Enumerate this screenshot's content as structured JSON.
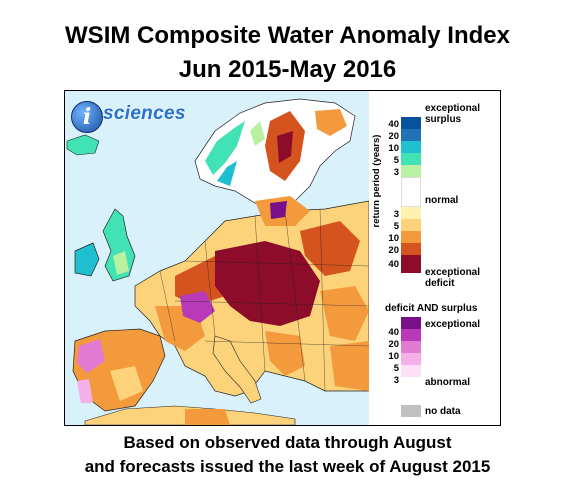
{
  "title_line1": "WSIM Composite Water Anomaly Index",
  "title_line2": "Jun 2015-May 2016",
  "logo": {
    "mark": "i",
    "text": "sciences"
  },
  "legend": {
    "axis_label": "return period (years)",
    "surplus_label": "exceptional surplus",
    "surplus_label_line1": "exceptional",
    "surplus_label_line2": "surplus",
    "normal_label": "normal",
    "deficit_label_line1": "exceptional",
    "deficit_label_line2": "deficit",
    "surplus_ticks": [
      "40",
      "20",
      "10",
      "5",
      "3"
    ],
    "deficit_ticks": [
      "3",
      "5",
      "10",
      "20",
      "40"
    ],
    "both_title": "deficit AND surplus",
    "both_top": "exceptional",
    "both_bottom": "abnormal",
    "both_ticks": [
      "40",
      "20",
      "10",
      "5",
      "3"
    ],
    "nodata_label": "no data",
    "colors": {
      "surplus": [
        "#08519c",
        "#2171b5",
        "#1fbfd0",
        "#41e2b4",
        "#b9f0a2"
      ],
      "normal": "#ffffff",
      "deficit": [
        "#fff2b0",
        "#fcd27a",
        "#f39a3c",
        "#d4531e",
        "#8c0c2a"
      ],
      "both": [
        "#7a0f8a",
        "#b83ab8",
        "#e27ad4",
        "#f5b0ea",
        "#fde0f8"
      ],
      "nodata": "#c0c0c0",
      "ocean": "#d9f1fb"
    }
  },
  "footer_line1": "Based on observed data through August",
  "footer_line2": "and forecasts issued the last week of August 2015"
}
